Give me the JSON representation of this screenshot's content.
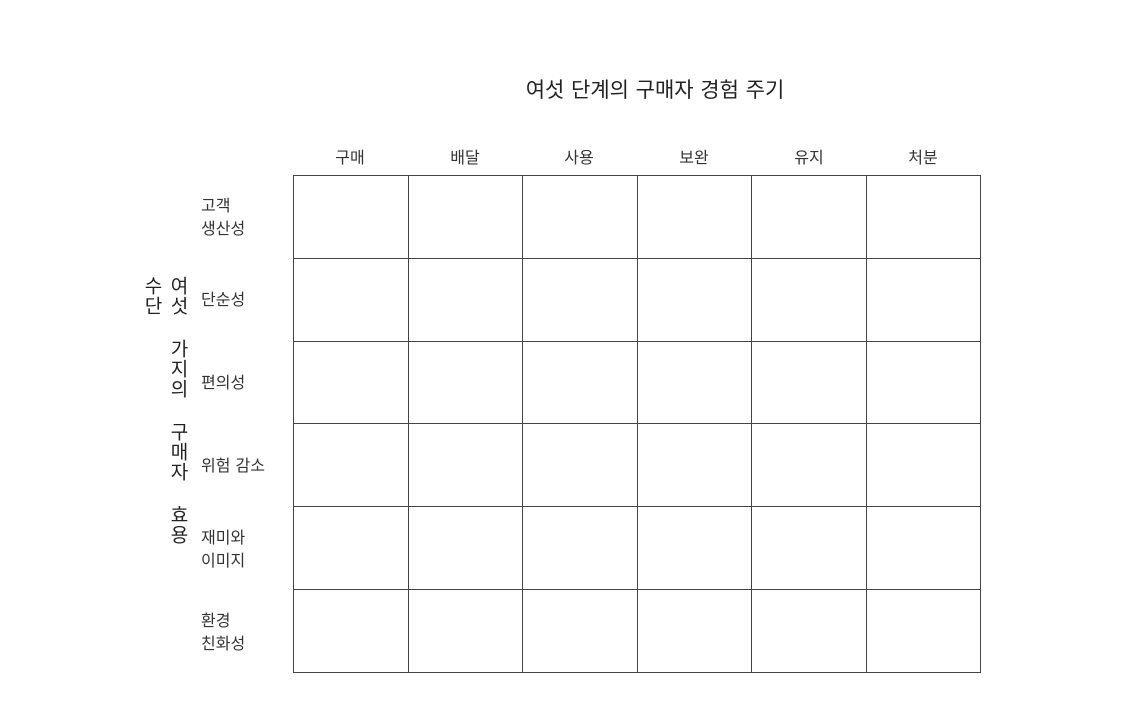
{
  "title": "여섯 단계의 구매자 경험 주기",
  "vertical_title": "여섯 가지의 구매자 효용 수단",
  "columns": [
    "구매",
    "배달",
    "사용",
    "보완",
    "유지",
    "처분"
  ],
  "rows": [
    "고객\n생산성",
    "단순성",
    "편의성",
    "위험 감소",
    "재미와\n이미지",
    "환경\n친화성"
  ]
}
